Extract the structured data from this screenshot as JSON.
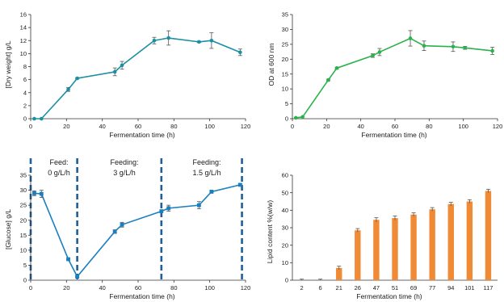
{
  "chart_data": [
    {
      "type": "line",
      "xlabel": "Fermentation time (h)",
      "ylabel": "[Dry weight] g/L",
      "xlim": [
        0,
        120
      ],
      "ylim": [
        0,
        16
      ],
      "xticks": [
        "0",
        "20",
        "40",
        "60",
        "80",
        "100",
        "120"
      ],
      "yticks": [
        "0",
        "2",
        "4",
        "6",
        "8",
        "10",
        "12",
        "14",
        "16"
      ],
      "series": [
        {
          "color": "#1b8fa3",
          "marker": "circle",
          "x": [
            2,
            6,
            21,
            26,
            47,
            51,
            69,
            77,
            94,
            101,
            117
          ],
          "y": [
            0,
            0,
            4.5,
            6.2,
            7.2,
            8.2,
            12.0,
            12.4,
            11.8,
            12.0,
            10.2
          ],
          "err": [
            0,
            0,
            0.3,
            0.1,
            0.6,
            0.6,
            0.5,
            1.1,
            0.1,
            1.2,
            0.5
          ]
        }
      ]
    },
    {
      "type": "line",
      "xlabel": "Fermentation time (h)",
      "ylabel": "OD at 600 nm",
      "xlim": [
        0,
        120
      ],
      "ylim": [
        0,
        35
      ],
      "xticks": [
        "0",
        "20",
        "40",
        "60",
        "80",
        "100",
        "120"
      ],
      "yticks": [
        "0",
        "5",
        "10",
        "15",
        "20",
        "25",
        "30",
        "35"
      ],
      "series": [
        {
          "color": "#2bb24c",
          "marker": "circle",
          "x": [
            2,
            6,
            21,
            26,
            47,
            51,
            69,
            77,
            94,
            101,
            117
          ],
          "y": [
            0.3,
            0.6,
            13.0,
            17.0,
            21.2,
            22.4,
            27.0,
            24.5,
            24.2,
            23.8,
            22.8
          ],
          "err": [
            0,
            0,
            0.3,
            0.3,
            0.6,
            1.2,
            2.6,
            1.6,
            1.6,
            0.5,
            1.2
          ]
        }
      ]
    },
    {
      "type": "line",
      "xlabel": "Fermentation time (h)",
      "ylabel": "[Glucose] g/L",
      "xlim": [
        0,
        120
      ],
      "ylim": [
        0,
        35
      ],
      "xticks": [
        "0",
        "20",
        "40",
        "60",
        "80",
        "100",
        "120"
      ],
      "yticks": [
        "0",
        "5",
        "10",
        "15",
        "20",
        "25",
        "30",
        "35"
      ],
      "phase_boundaries": [
        0,
        26,
        73,
        118
      ],
      "phases": [
        {
          "line1": "Feed:",
          "line2": "0 g/L/h"
        },
        {
          "line1": "Feeding:",
          "line2": "3 g/L/h"
        },
        {
          "line1": "Feeding:",
          "line2": "1.5 g/L/h"
        }
      ],
      "series": [
        {
          "color": "#1a7fbf",
          "marker": "square",
          "x": [
            2,
            6,
            21,
            26,
            47,
            51,
            73,
            77,
            94,
            101,
            117
          ],
          "y": [
            29.0,
            28.8,
            7.0,
            1.2,
            16.2,
            18.5,
            23.0,
            24.0,
            25.0,
            29.5,
            31.8
          ],
          "err": [
            0.8,
            1.2,
            0.3,
            0.3,
            0.6,
            0.8,
            0,
            1.0,
            1.2,
            0.4,
            0.3
          ]
        }
      ]
    },
    {
      "type": "bar",
      "xlabel": "Fermentation time (h)",
      "ylabel": "Lipid content %(w/w)",
      "ylim": [
        0,
        60
      ],
      "yticks": [
        "0",
        "10",
        "20",
        "30",
        "40",
        "50",
        "60"
      ],
      "categories": [
        "2",
        "6",
        "21",
        "26",
        "47",
        "51",
        "69",
        "77",
        "94",
        "101",
        "117"
      ],
      "color": "#f08a35",
      "series": [
        {
          "values": [
            0,
            0,
            7.0,
            28.5,
            34.5,
            35.5,
            37.5,
            40.5,
            43.5,
            45.0,
            51.0
          ],
          "err": [
            0.6,
            0.6,
            1.0,
            1.0,
            1.2,
            1.2,
            1.0,
            1.0,
            1.0,
            1.0,
            1.0
          ]
        }
      ]
    }
  ]
}
